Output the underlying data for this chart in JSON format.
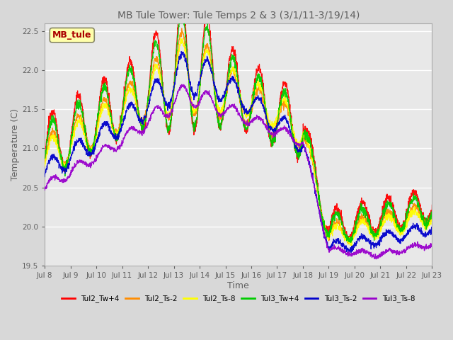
{
  "title": "MB Tule Tower: Tule Temps 2 & 3 (3/1/11-3/19/14)",
  "xlabel": "Time",
  "ylabel": "Temperature (C)",
  "ylim": [
    19.5,
    22.6
  ],
  "yticks": [
    19.5,
    20.0,
    20.5,
    21.0,
    21.5,
    22.0,
    22.5
  ],
  "xlim": [
    0,
    15
  ],
  "xtick_labels": [
    "Jul 8",
    "Jul 9",
    "Jul 10",
    "Jul 11",
    "Jul 12",
    "Jul 13",
    "Jul 14",
    "Jul 15",
    "Jul 16",
    "Jul 17",
    "Jul 18",
    "Jul 19",
    "Jul 20",
    "Jul 21",
    "Jul 22",
    "Jul 23"
  ],
  "legend_label": "MB_tule",
  "series_names": [
    "Tul2_Tw+4",
    "Tul2_Ts-2",
    "Tul2_Ts-8",
    "Tul3_Tw+4",
    "Tul3_Ts-2",
    "Tul3_Ts-8"
  ],
  "series_colors": [
    "#ff0000",
    "#ff8c00",
    "#ffff00",
    "#00cc00",
    "#0000cc",
    "#9900cc"
  ],
  "background_color": "#d8d8d8",
  "plot_bg_color": "#e8e8e8",
  "grid_color": "#ffffff",
  "title_color": "#606060",
  "label_color": "#606060",
  "figsize": [
    6.4,
    4.8
  ],
  "dpi": 100
}
